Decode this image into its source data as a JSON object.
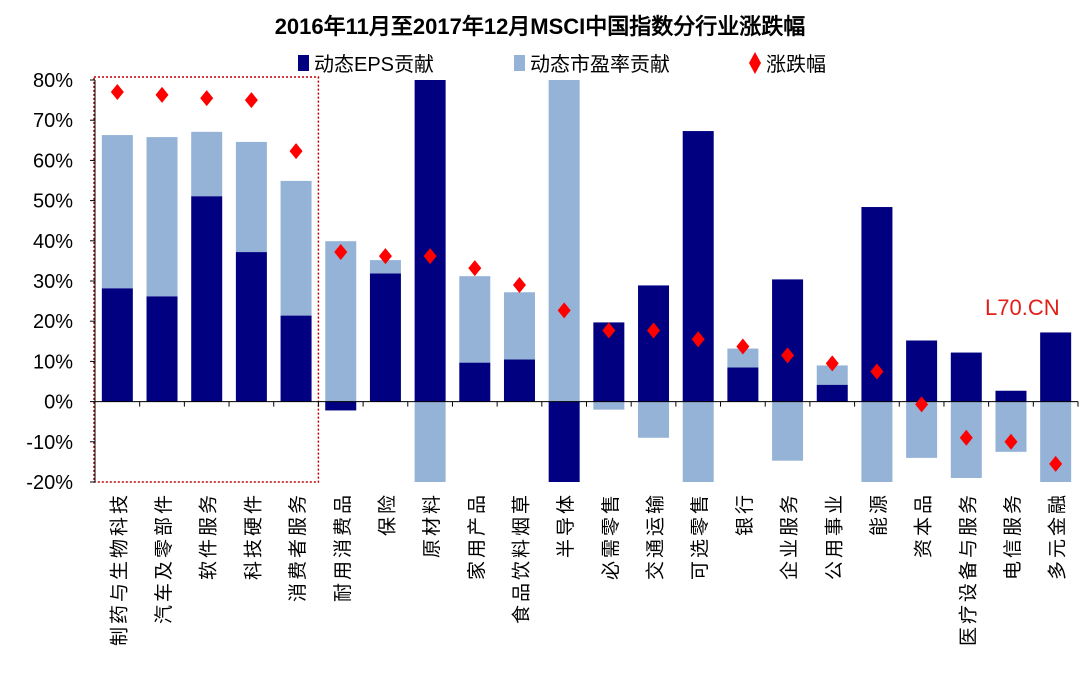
{
  "chart_data": {
    "type": "bar",
    "stacked": true,
    "title": "2016年11月至2017年12月MSCI中国指数分行业涨跌幅",
    "xlabel": "",
    "ylabel": "",
    "ylim": [
      -20,
      80
    ],
    "yticks": [
      "-20%",
      "-10%",
      "0%",
      "10%",
      "20%",
      "30%",
      "40%",
      "50%",
      "60%",
      "70%",
      "80%"
    ],
    "legend_position": "top",
    "grid": false,
    "categories": [
      "制药与生物科技",
      "汽车及零部件",
      "软件服务",
      "科技硬件",
      "消费者服务",
      "耐用消费品",
      "保险",
      "原材料",
      "家用产品",
      "食品饮料烟草",
      "半导体",
      "必需零售",
      "交通运输",
      "可选零售",
      "银行",
      "企业服务",
      "公用事业",
      "能源",
      "资本品",
      "医疗设备与服务",
      "电信服务",
      "多元金融"
    ],
    "series": [
      {
        "name": "动态EPS贡献",
        "kind": "bar",
        "color": "#000080",
        "values": [
          28.2,
          26.2,
          51.1,
          37.2,
          21.4,
          -2.2,
          31.9,
          80,
          9.7,
          10.5,
          -20,
          19.7,
          28.9,
          67.3,
          8.5,
          30.4,
          4.2,
          48.4,
          15.2,
          12.2,
          2.7,
          17.2
        ]
      },
      {
        "name": "动态市盈率贡献",
        "kind": "bar",
        "color": "#95B3D7",
        "values": [
          38.1,
          39.6,
          16.0,
          27.4,
          33.5,
          39.9,
          3.3,
          -20,
          21.5,
          16.7,
          80,
          -2.0,
          -9.0,
          -20,
          4.7,
          -14.7,
          4.8,
          -20,
          -14.0,
          -19.0,
          -12.5,
          -20
        ]
      },
      {
        "name": "涨跌幅",
        "kind": "marker",
        "marker": "diamond",
        "color": "#FF0000",
        "values": [
          77.0,
          76.3,
          75.5,
          75.0,
          62.3,
          37.2,
          36.2,
          36.2,
          33.2,
          29.0,
          22.7,
          17.7,
          17.7,
          15.5,
          13.7,
          11.5,
          9.5,
          7.5,
          -0.7,
          -9.0,
          -10.0,
          -15.5
        ]
      }
    ],
    "highlight_box": {
      "from_category": "制药与生物科技",
      "to_category": "消费者服务",
      "color": "#C00000"
    }
  },
  "watermark": {
    "text": "L70.CN",
    "color": "#E0201B"
  }
}
